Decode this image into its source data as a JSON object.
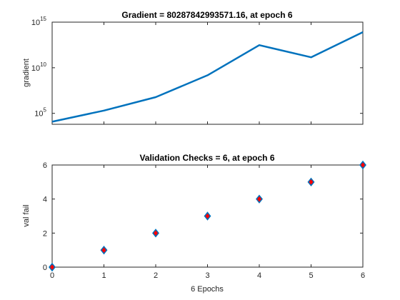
{
  "chart_data": [
    {
      "type": "line",
      "title": "Gradient = 80287842993571.16, at epoch 6",
      "xlabel": "",
      "ylabel": "gradient",
      "scale_y": "log",
      "x": [
        0,
        1,
        2,
        3,
        4,
        5,
        6
      ],
      "series": [
        {
          "values": [
            12000.0,
            200000.0,
            6000000.0,
            1500000000.0,
            3000000000000.0,
            140000000000.0,
            80287842993571.0
          ]
        }
      ],
      "xlim": [
        0,
        6
      ],
      "ylim_exp": [
        3.8,
        15
      ],
      "ytick_exponents": [
        5,
        10,
        15
      ],
      "ytick_base": "10",
      "line_color": "#0072BD",
      "grid": false
    },
    {
      "type": "scatter",
      "title": "Validation Checks = 6, at epoch 6",
      "xlabel": "6 Epochs",
      "ylabel": "val fail",
      "x": [
        0,
        1,
        2,
        3,
        4,
        5,
        6
      ],
      "series": [
        {
          "values": [
            0,
            1,
            2,
            3,
            4,
            5,
            6
          ]
        }
      ],
      "xlim": [
        0,
        6
      ],
      "ylim": [
        0,
        6
      ],
      "xticks": [
        "0",
        "1",
        "2",
        "3",
        "4",
        "5",
        "6"
      ],
      "yticks": [
        "0",
        "2",
        "4",
        "6"
      ],
      "marker": "diamond",
      "marker_edge_color": "#0072BD",
      "marker_face_color": "#FF0000",
      "grid": false
    }
  ]
}
